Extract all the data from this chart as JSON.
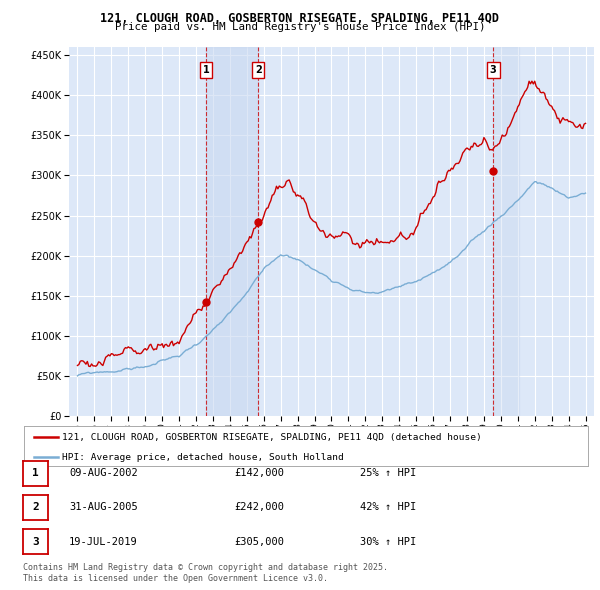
{
  "title_line1": "121, CLOUGH ROAD, GOSBERTON RISEGATE, SPALDING, PE11 4QD",
  "title_line2": "Price paid vs. HM Land Registry's House Price Index (HPI)",
  "background_color": "#ffffff",
  "plot_bg_color": "#dde8f8",
  "grid_color": "#ffffff",
  "red_color": "#cc0000",
  "blue_color": "#7aadd4",
  "shade_color": "#dde8f8",
  "legend_label_red": "121, CLOUGH ROAD, GOSBERTON RISEGATE, SPALDING, PE11 4QD (detached house)",
  "legend_label_blue": "HPI: Average price, detached house, South Holland",
  "sales": [
    {
      "num": 1,
      "date_x": 2002.6,
      "price": 142000,
      "label": "09-AUG-2002",
      "pct": "25% ↑ HPI"
    },
    {
      "num": 2,
      "date_x": 2005.67,
      "price": 242000,
      "label": "31-AUG-2005",
      "pct": "42% ↑ HPI"
    },
    {
      "num": 3,
      "date_x": 2019.55,
      "price": 305000,
      "label": "19-JUL-2019",
      "pct": "30% ↑ HPI"
    }
  ],
  "footer_line1": "Contains HM Land Registry data © Crown copyright and database right 2025.",
  "footer_line2": "This data is licensed under the Open Government Licence v3.0.",
  "ylim": [
    0,
    460000
  ],
  "xlim": [
    1994.5,
    2025.5
  ],
  "yticks": [
    0,
    50000,
    100000,
    150000,
    200000,
    250000,
    300000,
    350000,
    400000,
    450000
  ],
  "xticks": [
    1995,
    1996,
    1997,
    1998,
    1999,
    2000,
    2001,
    2002,
    2003,
    2004,
    2005,
    2006,
    2007,
    2008,
    2009,
    2010,
    2011,
    2012,
    2013,
    2014,
    2015,
    2016,
    2017,
    2018,
    2019,
    2020,
    2021,
    2022,
    2023,
    2024,
    2025
  ]
}
